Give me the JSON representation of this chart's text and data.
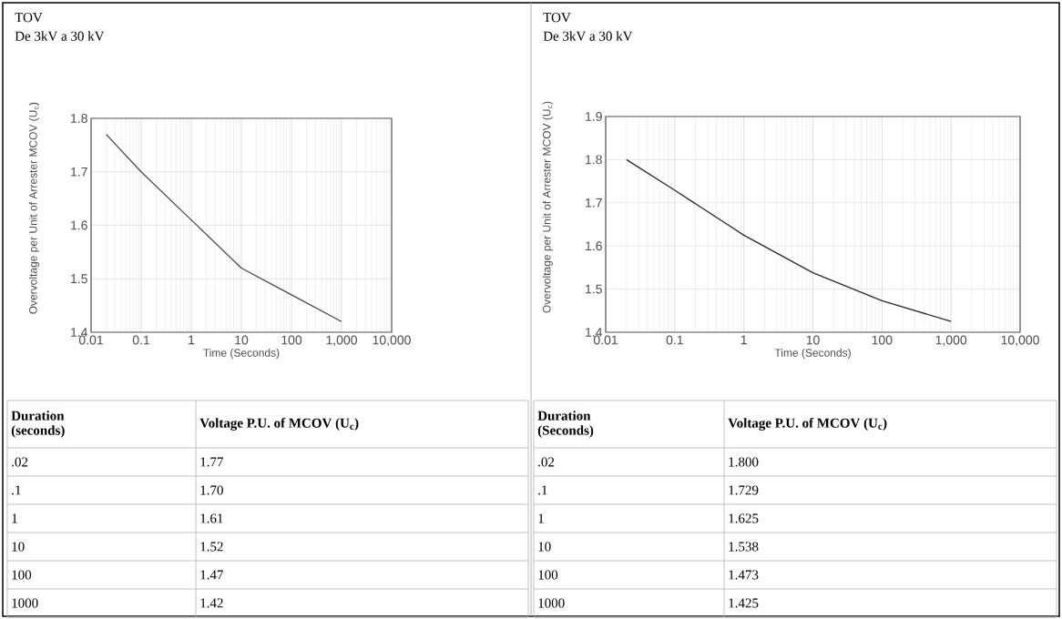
{
  "chart_data": [
    {
      "type": "line",
      "title": "TOV",
      "subtitle": "De 3kV a  30 kV",
      "xlabel": "Time (Seconds)",
      "ylabel": "Overvoltage per Unit of Arrester MCOV (U$_{c}$)",
      "x": [
        0.02,
        0.1,
        1,
        10,
        100,
        1000
      ],
      "values": [
        1.77,
        1.7,
        1.61,
        1.52,
        1.47,
        1.42
      ],
      "color": "#4a4a4a",
      "log": "x",
      "grid": true,
      "xlim": [
        0.01,
        10000
      ],
      "ylim": [
        1.4,
        1.8
      ],
      "xticks": [
        {
          "value": 0.01,
          "label": "0.01"
        },
        {
          "value": 0.1,
          "label": "0.1"
        },
        1,
        10,
        100,
        {
          "value": 1000,
          "label": "1,000"
        },
        {
          "value": 10000,
          "label": "10,000"
        }
      ],
      "yticks": [
        {
          "value": 1.4,
          "label": "1.4"
        },
        {
          "value": 1.5,
          "label": "1.5"
        },
        {
          "value": 1.6,
          "label": "1.6"
        },
        {
          "value": 1.7,
          "label": "1.7"
        },
        {
          "value": 1.8,
          "label": "1.8"
        }
      ],
      "annotations": [
        "Duration (seconds)",
        "Voltage P.U. of MCOV (U$_{c}$)",
        ".02",
        ".1",
        "1",
        "10",
        "100",
        "1000",
        "1.77",
        "1.70",
        "1.61",
        "1.52",
        "1.47",
        "1.42"
      ]
    },
    {
      "type": "line",
      "title": "TOV",
      "subtitle": "De 3kV a  30 kV",
      "xlabel": "Time (Seconds)",
      "ylabel": "Overvoltage per Unit of Arrester MCOV (U$_{c}$)",
      "x": [
        0.02,
        0.1,
        1,
        10,
        100,
        1000
      ],
      "values": [
        1.8,
        1.729,
        1.625,
        1.538,
        1.473,
        1.425
      ],
      "color": "#2a2a2a",
      "log": "x",
      "grid": true,
      "xlim": [
        0.01,
        10000
      ],
      "ylim": [
        1.4,
        1.9
      ],
      "xticks": [
        {
          "value": 0.01,
          "label": "0.01"
        },
        {
          "value": 0.1,
          "label": "0.1"
        },
        1,
        10,
        100,
        {
          "value": 1000,
          "label": "1,000"
        },
        {
          "value": 10000,
          "label": "10,000"
        }
      ],
      "yticks": [
        {
          "value": 1.4,
          "label": "1.4"
        },
        {
          "value": 1.5,
          "label": "1.5"
        },
        {
          "value": 1.6,
          "label": "1.6"
        },
        {
          "value": 1.7,
          "label": "1.7"
        },
        {
          "value": 1.8,
          "label": "1.8"
        },
        {
          "value": 1.9,
          "label": "1.9"
        }
      ],
      "annotations": [
        "Duration (Seconds)",
        "Voltage P.U. of MCOV (U$_{c}$)",
        ".02",
        ".1",
        "1",
        "10",
        "100",
        "1000",
        "1.800",
        "1.729",
        "1.625",
        "1.538",
        "1.473",
        "1.425"
      ]
    }
  ]
}
